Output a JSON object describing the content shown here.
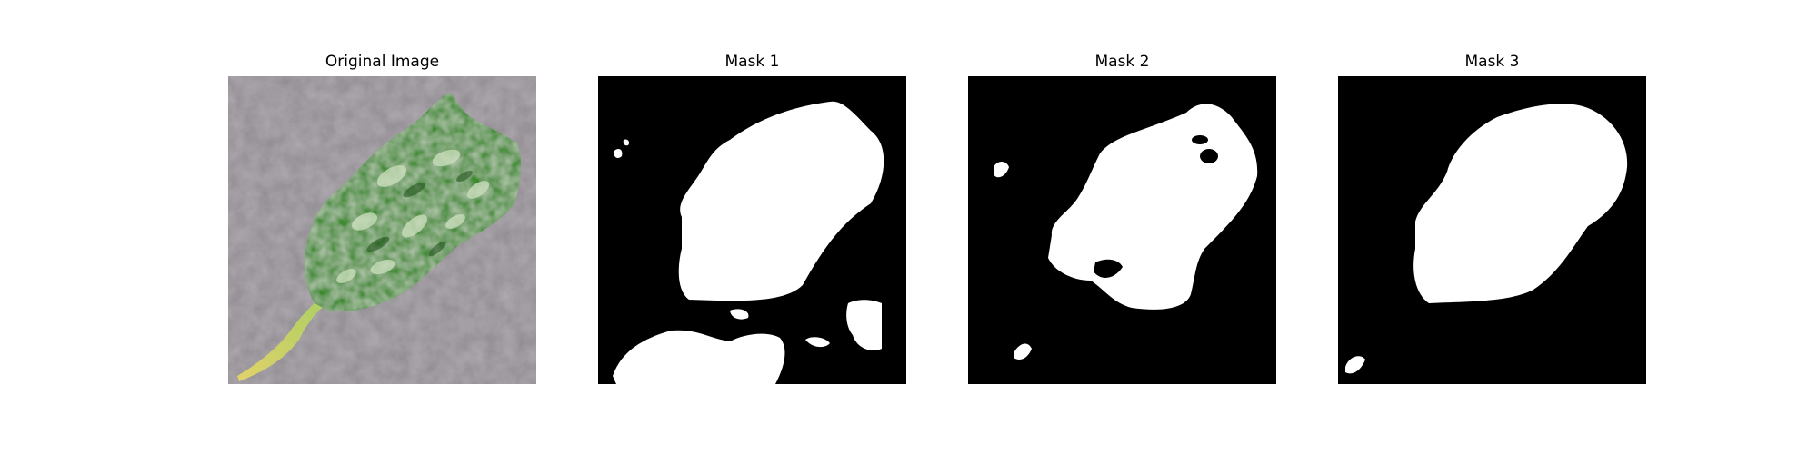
{
  "figure": {
    "panels": [
      {
        "title": "Original Image"
      },
      {
        "title": "Mask 1"
      },
      {
        "title": "Mask 2"
      },
      {
        "title": "Mask 3"
      }
    ]
  },
  "colors": {
    "background": "#ffffff",
    "mask_background": "#000000",
    "mask_foreground": "#ffffff",
    "surface_gray": "#8f8a90",
    "leaf_green": "#3f8f2f",
    "stem_yellow": "#c6d86a"
  }
}
